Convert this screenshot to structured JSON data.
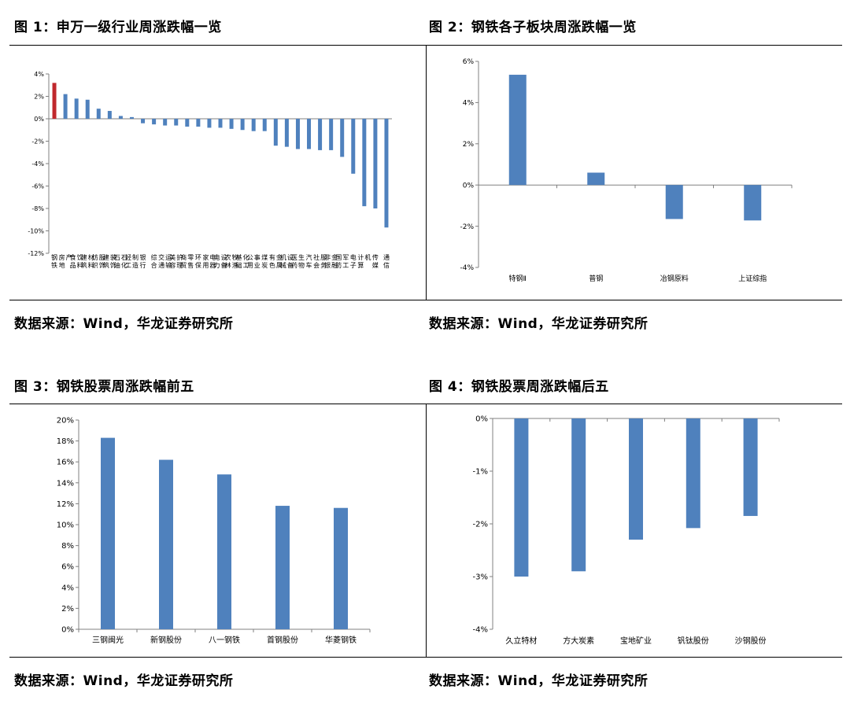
{
  "figures": [
    {
      "title": "图 1：申万一级行业周涨跌幅一览",
      "source": "数据来源：Wind，华龙证券研究所"
    },
    {
      "title": "图 2：钢铁各子板块周涨跌幅一览",
      "source": "数据来源：Wind，华龙证券研究所"
    },
    {
      "title": "图 3：钢铁股票周涨跌幅前五",
      "source": "数据来源：Wind，华龙证券研究所"
    },
    {
      "title": "图 4：钢铁股票周涨跌幅后五",
      "source": "数据来源：Wind，华龙证券研究所"
    }
  ],
  "colors": {
    "bar": "#4f81bd",
    "highlight": "#c0282d",
    "axis": "#808080"
  },
  "chart_data": [
    {
      "type": "bar",
      "title": "",
      "categories": [
        "钢铁",
        "房地产",
        "食品饮料",
        "建筑材料",
        "纺织服饰",
        "建筑装饰",
        "石油石化",
        "轻工制造",
        "银行",
        "综合",
        "交通运输",
        "美容护理",
        "商贸零售",
        "环保",
        "家用电器",
        "电力设备",
        "农林牧渔",
        "基础化工",
        "公用事业",
        "煤炭",
        "有色金属",
        "机械设备",
        "医药生物",
        "汽车",
        "社会服务",
        "非银金融",
        "国防军工",
        "电子",
        "计算机",
        "传媒",
        "通信"
      ],
      "values": [
        3.2,
        2.2,
        1.8,
        1.7,
        0.9,
        0.7,
        0.25,
        0.15,
        -0.4,
        -0.5,
        -0.6,
        -0.6,
        -0.7,
        -0.7,
        -0.8,
        -0.8,
        -0.9,
        -1.0,
        -1.1,
        -1.1,
        -2.4,
        -2.5,
        -2.7,
        -2.7,
        -2.8,
        -2.8,
        -3.4,
        -4.9,
        -7.8,
        -8.0,
        -9.7
      ],
      "highlight_index": 0,
      "ylim": [
        -12,
        4
      ],
      "yticks": [
        4,
        2,
        0,
        -2,
        -4,
        -6,
        -8,
        -10,
        -12
      ],
      "ytick_format": "percent"
    },
    {
      "type": "bar",
      "title": "",
      "categories": [
        "特钢Ⅱ",
        "普钢",
        "冶钢原料",
        "上证综指"
      ],
      "values": [
        5.35,
        0.6,
        -1.65,
        -1.72
      ],
      "ylim": [
        -4,
        6
      ],
      "yticks": [
        6,
        4,
        2,
        0,
        -2,
        -4
      ],
      "ytick_format": "percent"
    },
    {
      "type": "bar",
      "title": "",
      "categories": [
        "三钢闽光",
        "新钢股份",
        "八一钢铁",
        "首钢股份",
        "华菱钢铁"
      ],
      "values": [
        18.3,
        16.2,
        14.8,
        11.8,
        11.6
      ],
      "ylim": [
        0,
        20
      ],
      "yticks": [
        20,
        18,
        16,
        14,
        12,
        10,
        8,
        6,
        4,
        2,
        0
      ],
      "ytick_format": "percent"
    },
    {
      "type": "bar",
      "title": "",
      "categories": [
        "久立特材",
        "方大炭素",
        "宝地矿业",
        "钒钛股份",
        "沙钢股份"
      ],
      "values": [
        -3.0,
        -2.9,
        -2.3,
        -2.08,
        -1.85
      ],
      "ylim": [
        -4,
        0
      ],
      "yticks": [
        0,
        -1,
        -2,
        -3,
        -4
      ],
      "ytick_format": "percent"
    }
  ]
}
